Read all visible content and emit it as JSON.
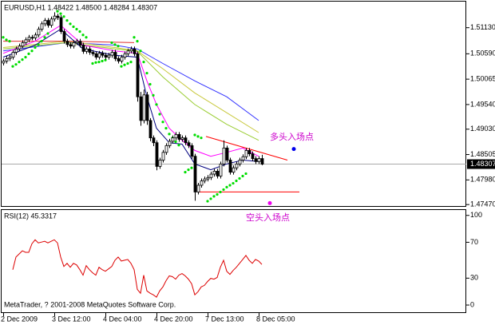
{
  "chart_data": [
    {
      "type": "candlestick",
      "title": "EURUSD,H1  1.48422 1.48500 1.48284 1.48307",
      "open": [
        1.504,
        1.5044,
        1.5049,
        1.5052,
        1.5062,
        1.5069,
        1.5075,
        1.5082,
        1.5088,
        1.5093,
        1.5092,
        1.5098,
        1.511,
        1.5121,
        1.5128,
        1.5118,
        1.5131,
        1.5137,
        1.5134,
        1.5105,
        1.5085,
        1.5078,
        1.5075,
        1.5082,
        1.5085,
        1.5077,
        1.5064,
        1.5069,
        1.5062,
        1.5059,
        1.5052,
        1.506,
        1.5056,
        1.5052,
        1.5056,
        1.5062,
        1.5049,
        1.5044,
        1.5052,
        1.5059,
        1.5065,
        1.5069,
        1.5059,
        1.497,
        1.4921,
        1.4974,
        1.4921,
        1.4885,
        1.4875,
        1.4826,
        1.4839,
        1.4855,
        1.4869,
        1.4878,
        1.4885,
        1.4892,
        1.4882,
        1.4885,
        1.4875,
        1.4869,
        1.4847,
        1.4773,
        1.4787,
        1.4796,
        1.48,
        1.4803,
        1.481,
        1.4816,
        1.4806,
        1.4831,
        1.4864,
        1.4839,
        1.4814,
        1.4823,
        1.4831,
        1.4839,
        1.4846,
        1.4859,
        1.4852,
        1.4842,
        1.4836,
        1.48422
      ],
      "high": [
        1.5049,
        1.5054,
        1.5057,
        1.5067,
        1.5074,
        1.508,
        1.5087,
        1.5093,
        1.5098,
        1.5098,
        1.5103,
        1.5115,
        1.5126,
        1.5133,
        1.5133,
        1.5136,
        1.5145,
        1.5142,
        1.5139,
        1.511,
        1.509,
        1.5083,
        1.5087,
        1.509,
        1.509,
        1.5082,
        1.5074,
        1.5074,
        1.5067,
        1.5064,
        1.5065,
        1.5065,
        1.5061,
        1.5061,
        1.5067,
        1.5067,
        1.5054,
        1.5057,
        1.5064,
        1.507,
        1.5074,
        1.5074,
        1.5064,
        1.498,
        1.4985,
        1.498,
        1.4926,
        1.489,
        1.488,
        1.4844,
        1.486,
        1.4874,
        1.4883,
        1.489,
        1.4897,
        1.4897,
        1.489,
        1.489,
        1.488,
        1.4874,
        1.4852,
        1.4792,
        1.4801,
        1.4805,
        1.4808,
        1.4815,
        1.4821,
        1.4821,
        1.4836,
        1.488,
        1.4869,
        1.4844,
        1.4828,
        1.4836,
        1.4844,
        1.4851,
        1.4864,
        1.4864,
        1.4857,
        1.4847,
        1.4847,
        1.485
      ],
      "low": [
        1.5035,
        1.5039,
        1.5044,
        1.5047,
        1.5057,
        1.5064,
        1.507,
        1.5077,
        1.5083,
        1.5087,
        1.5087,
        1.5093,
        1.5105,
        1.5116,
        1.5113,
        1.5113,
        1.5126,
        1.5129,
        1.51,
        1.508,
        1.5073,
        1.507,
        1.507,
        1.5077,
        1.5072,
        1.5059,
        1.5059,
        1.5057,
        1.5054,
        1.5047,
        1.5047,
        1.5051,
        1.5047,
        1.5047,
        1.5051,
        1.5044,
        1.5039,
        1.5039,
        1.5047,
        1.5054,
        1.506,
        1.5054,
        1.496,
        1.491,
        1.4915,
        1.4912,
        1.4878,
        1.4868,
        1.4818,
        1.4821,
        1.4834,
        1.485,
        1.4864,
        1.4873,
        1.488,
        1.4877,
        1.4877,
        1.487,
        1.4864,
        1.4842,
        1.4755,
        1.4768,
        1.4782,
        1.4791,
        1.4795,
        1.4798,
        1.4805,
        1.4801,
        1.4801,
        1.4826,
        1.4834,
        1.4809,
        1.4809,
        1.4818,
        1.4826,
        1.4834,
        1.4841,
        1.4847,
        1.4837,
        1.4831,
        1.4831,
        1.48284
      ],
      "close": [
        1.5044,
        1.5049,
        1.5052,
        1.5062,
        1.5069,
        1.5075,
        1.5082,
        1.5088,
        1.5093,
        1.5092,
        1.5098,
        1.511,
        1.5121,
        1.5128,
        1.5118,
        1.5131,
        1.5137,
        1.5134,
        1.5105,
        1.5085,
        1.5078,
        1.5075,
        1.5082,
        1.5085,
        1.5077,
        1.5064,
        1.5069,
        1.5062,
        1.5059,
        1.5052,
        1.506,
        1.5056,
        1.5052,
        1.5056,
        1.5062,
        1.5049,
        1.5044,
        1.5052,
        1.5059,
        1.5065,
        1.5069,
        1.5059,
        1.497,
        1.4921,
        1.4974,
        1.4921,
        1.4885,
        1.4875,
        1.4826,
        1.4839,
        1.4855,
        1.4869,
        1.4878,
        1.4885,
        1.4892,
        1.4882,
        1.4885,
        1.4875,
        1.4869,
        1.4847,
        1.4773,
        1.4787,
        1.4796,
        1.48,
        1.4803,
        1.481,
        1.4816,
        1.4806,
        1.4831,
        1.4864,
        1.4839,
        1.4814,
        1.4823,
        1.4831,
        1.4839,
        1.4846,
        1.4859,
        1.4852,
        1.4842,
        1.4836,
        1.48422,
        1.48307
      ],
      "up_color": "#ffffff",
      "down_color": "#000000",
      "ylim": [
        1.4744,
        1.5167
      ],
      "yticks": [
        {
          "value": 1.5113,
          "label": "1.51130"
        },
        {
          "value": 1.5059,
          "label": "1.50590"
        },
        1.50065,
        {
          "value": 1.4954,
          "label": "1.49540"
        },
        {
          "value": 1.4903,
          "label": "1.49030"
        },
        1.48505,
        {
          "value": 1.4798,
          "label": "1.47980"
        },
        {
          "value": 1.4747,
          "label": "1.47470"
        }
      ],
      "last_price": 1.48307,
      "overlays": [
        {
          "type": "line",
          "color": "#3333ff",
          "x": [
            0,
            20,
            35,
            42,
            50,
            60,
            70,
            80
          ],
          "values": [
            1.5065,
            1.5082,
            1.5077,
            1.5069,
            1.5039,
            1.5003,
            1.497,
            1.4921
          ]
        },
        {
          "type": "line",
          "color": "#c8c83c",
          "x": [
            0,
            20,
            35,
            42,
            50,
            60,
            70,
            80
          ],
          "values": [
            1.5072,
            1.5085,
            1.5072,
            1.5065,
            1.5028,
            1.4978,
            1.4937,
            1.4896
          ]
        },
        {
          "type": "line",
          "color": "#9acd32",
          "x": [
            0,
            20,
            35,
            42,
            50,
            60,
            70,
            80
          ],
          "values": [
            1.5069,
            1.5082,
            1.5069,
            1.5064,
            1.5011,
            1.4954,
            1.4913,
            1.488
          ]
        },
        {
          "type": "line",
          "color": "#e03030",
          "x": [
            0,
            20,
            41
          ],
          "values": [
            1.5085,
            1.5085,
            1.5082
          ]
        },
        {
          "type": "line",
          "color": "#ff00ff",
          "x": [
            0,
            10,
            18,
            25,
            35,
            42,
            45,
            48,
            52,
            56,
            60,
            65,
            70,
            75,
            80
          ],
          "values": [
            1.506,
            1.5085,
            1.5118,
            1.5077,
            1.5065,
            1.506,
            1.5003,
            1.4954,
            1.4905,
            1.488,
            1.4859,
            1.4847,
            1.4855,
            1.4864,
            1.4847
          ]
        },
        {
          "type": "line",
          "color": "#000080",
          "x": [
            0,
            10,
            18,
            25,
            35,
            42,
            45,
            48,
            52,
            56,
            60,
            65,
            70,
            75,
            80
          ],
          "values": [
            1.5052,
            1.5077,
            1.511,
            1.5069,
            1.5056,
            1.5052,
            1.497,
            1.4905,
            1.4875,
            1.4872,
            1.4831,
            1.4819,
            1.4831,
            1.4839,
            1.4836
          ]
        },
        {
          "type": "line",
          "color": "#ff0000",
          "x": [
            63.5,
            89
          ],
          "values": [
            1.4888,
            1.4839
          ]
        },
        {
          "type": "line",
          "color": "#ff0000",
          "x": [
            61.5,
            92.75
          ],
          "values": [
            1.4773,
            1.4773
          ]
        },
        {
          "type": "scatter",
          "color": "#00dd00",
          "x": [
            0,
            1,
            2,
            3,
            4,
            5,
            6,
            7,
            8,
            9,
            10,
            11,
            12,
            13,
            14,
            17,
            18,
            19,
            20,
            21,
            22,
            23,
            24,
            25,
            26,
            28,
            29,
            30,
            31,
            32,
            34,
            35,
            36,
            37,
            38,
            39,
            40,
            41,
            42,
            43,
            44,
            45,
            46,
            47,
            48,
            49,
            50,
            51,
            52,
            53,
            54,
            55,
            57,
            58,
            59,
            60,
            61,
            62,
            64,
            65,
            66,
            67,
            68,
            69,
            70,
            71,
            72,
            73,
            74,
            75,
            76
          ],
          "values": [
            1.5093,
            1.5088,
            1.5085,
            1.5033,
            1.5037,
            1.5042,
            1.5047,
            1.5052,
            1.5059,
            1.5065,
            1.5072,
            1.5078,
            1.5085,
            1.5093,
            1.5101,
            1.5147,
            1.5142,
            1.5136,
            1.5128,
            1.5121,
            1.5115,
            1.511,
            1.5105,
            1.5098,
            1.5093,
            1.5039,
            1.5041,
            1.5042,
            1.5044,
            1.5046,
            1.5082,
            1.5078,
            1.5075,
            1.5033,
            1.5036,
            1.5039,
            1.5042,
            1.5093,
            1.5085,
            1.5065,
            1.5042,
            1.5019,
            1.4996,
            1.4973,
            1.4954,
            1.4934,
            1.4918,
            1.4905,
            1.4893,
            1.4885,
            1.4877,
            1.487,
            1.4814,
            1.4819,
            1.4823,
            1.4891,
            1.4888,
            1.4885,
            1.4754,
            1.4759,
            1.4764,
            1.4768,
            1.4773,
            1.4778,
            1.4783,
            1.4787,
            1.4791,
            1.4796,
            1.4801,
            1.4806,
            1.4811
          ]
        },
        {
          "type": "dot",
          "color": "#0000ee",
          "x": [
            91
          ],
          "values": [
            1.4862
          ]
        },
        {
          "type": "dot",
          "color": "#ee00ee",
          "x": [
            83.5
          ],
          "values": [
            1.475
          ]
        }
      ],
      "annotations": [
        {
          "text": "多头入场点",
          "color": "#cc00cc"
        },
        {
          "text": "空头入场点",
          "color": "#cc00cc"
        }
      ]
    },
    {
      "type": "line",
      "title": "RSI(12) 45.3317",
      "footer": "MetaTrader, ? 2001-2008 MetaQuotes Software Corp.",
      "categories": [
        "2 Dec 2009",
        null,
        null,
        null,
        null,
        null,
        null,
        null,
        null,
        null,
        null,
        null,
        null,
        null,
        null,
        null,
        "3 Dec 12:00",
        null,
        null,
        null,
        null,
        null,
        null,
        null,
        null,
        null,
        null,
        null,
        null,
        null,
        null,
        null,
        "4 Dec 04:00",
        null,
        null,
        null,
        null,
        null,
        null,
        null,
        null,
        null,
        null,
        null,
        null,
        null,
        null,
        null,
        "4 Dec 20:00",
        null,
        null,
        null,
        null,
        null,
        null,
        null,
        null,
        null,
        null,
        null,
        null,
        null,
        null,
        null,
        "7 Dec 13:00",
        null,
        null,
        null,
        null,
        null,
        null,
        null,
        null,
        null,
        null,
        null,
        null,
        null,
        null,
        null,
        "8 Dec 05:00",
        null
      ],
      "series": [
        {
          "color": "#dd0000",
          "values": [
            null,
            null,
            null,
            39.5,
            53.5,
            57.0,
            60.5,
            58.8,
            58.8,
            68.4,
            72.8,
            69.3,
            70.2,
            71.1,
            69.3,
            71.1,
            72.8,
            69.3,
            53.5,
            43.0,
            46.5,
            42.1,
            46.5,
            44.7,
            39.5,
            33.3,
            43.9,
            39.5,
            36.0,
            33.3,
            42.1,
            39.5,
            37.7,
            40.4,
            43.0,
            50.0,
            53.5,
            49.1,
            50.0,
            50.9,
            46.5,
            39.5,
            17.5,
            13.2,
            33.3,
            15.8,
            13.2,
            11.4,
            8.8,
            15.8,
            20.2,
            27.2,
            32.5,
            31.6,
            28.9,
            33.3,
            35.1,
            32.5,
            28.9,
            23.7,
            11.4,
            14.9,
            20.2,
            21.9,
            26.3,
            29.8,
            28.9,
            30.7,
            42.1,
            50.0,
            37.7,
            34.2,
            38.6,
            42.1,
            46.5,
            50.9,
            55.3,
            50.0,
            46.5,
            50.9,
            49.1,
            45.3317
          ]
        }
      ],
      "ylim": [
        -8,
        106
      ],
      "yticks": [
        100,
        70,
        30,
        0
      ]
    }
  ]
}
